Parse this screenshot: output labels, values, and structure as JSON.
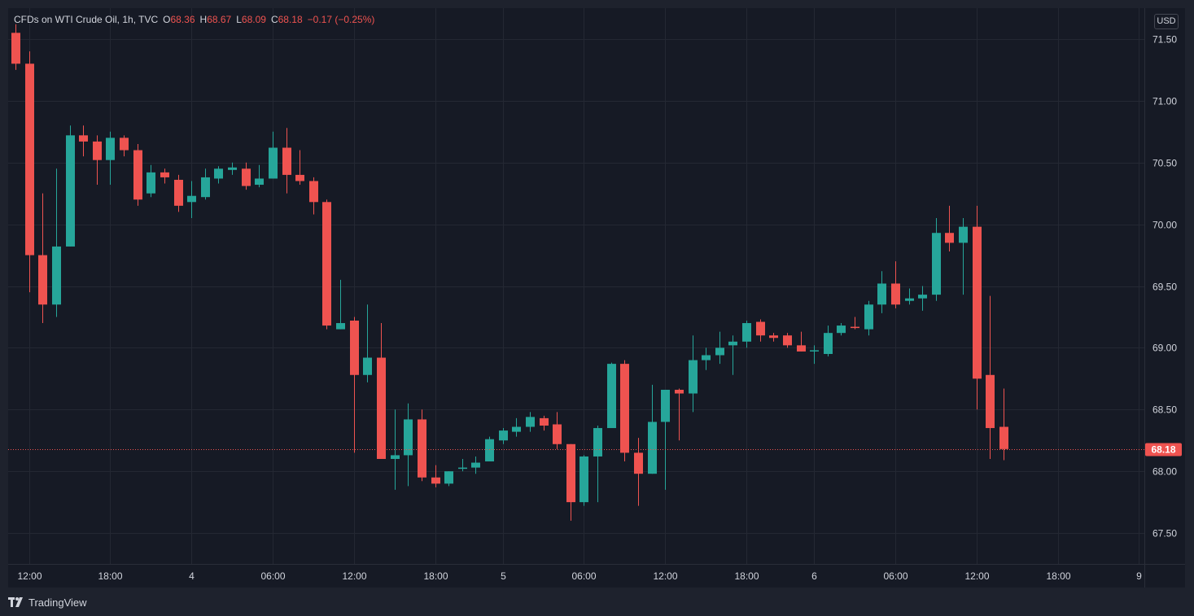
{
  "legend": {
    "symbol": "CFDs on WTI Crude Oil, 1h, TVC",
    "open_label": "O",
    "open": "68.36",
    "high_label": "H",
    "high": "68.67",
    "low_label": "L",
    "low": "68.09",
    "close_label": "C",
    "close": "68.18",
    "change": "−0.17 (−0.25%)"
  },
  "currency": "USD",
  "branding": {
    "logo_icon": "tradingview-logo-icon",
    "name": "TradingView"
  },
  "colors": {
    "up": "#26a69a",
    "down": "#ef5350",
    "grid": "#242833",
    "text": "#d1d4dc"
  },
  "chart_data": {
    "type": "candlestick",
    "interval": "1h",
    "ylim": [
      67.25,
      71.75
    ],
    "yticks": [
      "71.50",
      "71.00",
      "70.50",
      "70.00",
      "69.50",
      "69.00",
      "68.50",
      "68.00",
      "67.50"
    ],
    "xticks": [
      {
        "label": "12:00",
        "bar": 1
      },
      {
        "label": "18:00",
        "bar": 7
      },
      {
        "label": "4",
        "bar": 13
      },
      {
        "label": "06:00",
        "bar": 19
      },
      {
        "label": "12:00",
        "bar": 25
      },
      {
        "label": "18:00",
        "bar": 31
      },
      {
        "label": "5",
        "bar": 36
      },
      {
        "label": "06:00",
        "bar": 42
      },
      {
        "label": "12:00",
        "bar": 48
      },
      {
        "label": "18:00",
        "bar": 54
      },
      {
        "label": "6",
        "bar": 59
      },
      {
        "label": "06:00",
        "bar": 65
      },
      {
        "label": "12:00",
        "bar": 71
      },
      {
        "label": "18:00",
        "bar": 77
      },
      {
        "label": "9",
        "bar": 83
      }
    ],
    "last_price": "68.18",
    "candles": [
      [
        71.55,
        71.62,
        71.25,
        71.3
      ],
      [
        71.3,
        71.4,
        69.45,
        69.75
      ],
      [
        69.75,
        70.25,
        69.2,
        69.35
      ],
      [
        69.35,
        70.45,
        69.25,
        69.82
      ],
      [
        69.82,
        70.8,
        69.82,
        70.72
      ],
      [
        70.72,
        70.8,
        70.55,
        70.67
      ],
      [
        70.67,
        70.72,
        70.32,
        70.52
      ],
      [
        70.52,
        70.75,
        70.32,
        70.7
      ],
      [
        70.7,
        70.72,
        70.55,
        70.6
      ],
      [
        70.6,
        70.65,
        70.15,
        70.2
      ],
      [
        70.25,
        70.48,
        70.22,
        70.42
      ],
      [
        70.42,
        70.45,
        70.33,
        70.38
      ],
      [
        70.36,
        70.4,
        70.1,
        70.15
      ],
      [
        70.18,
        70.35,
        70.05,
        70.23
      ],
      [
        70.22,
        70.45,
        70.2,
        70.38
      ],
      [
        70.37,
        70.47,
        70.33,
        70.45
      ],
      [
        70.44,
        70.5,
        70.4,
        70.46
      ],
      [
        70.45,
        70.5,
        70.28,
        70.31
      ],
      [
        70.32,
        70.48,
        70.3,
        70.37
      ],
      [
        70.37,
        70.75,
        70.37,
        70.62
      ],
      [
        70.62,
        70.78,
        70.25,
        70.4
      ],
      [
        70.4,
        70.6,
        70.32,
        70.35
      ],
      [
        70.35,
        70.38,
        70.08,
        70.18
      ],
      [
        70.18,
        70.2,
        69.15,
        69.18
      ],
      [
        69.15,
        69.55,
        69.15,
        69.2
      ],
      [
        69.22,
        69.25,
        68.15,
        68.78
      ],
      [
        68.78,
        69.35,
        68.72,
        68.92
      ],
      [
        68.92,
        69.2,
        68.1,
        68.1
      ],
      [
        68.1,
        68.5,
        67.85,
        68.13
      ],
      [
        68.13,
        68.55,
        67.88,
        68.42
      ],
      [
        68.42,
        68.5,
        67.92,
        67.95
      ],
      [
        67.95,
        68.05,
        67.87,
        67.9
      ],
      [
        67.9,
        68.0,
        67.88,
        68.0
      ],
      [
        68.02,
        68.1,
        68.0,
        68.03
      ],
      [
        68.03,
        68.12,
        67.98,
        68.07
      ],
      [
        68.08,
        68.28,
        68.08,
        68.26
      ],
      [
        68.25,
        68.35,
        68.22,
        68.33
      ],
      [
        68.32,
        68.43,
        68.28,
        68.36
      ],
      [
        68.36,
        68.48,
        68.32,
        68.44
      ],
      [
        68.43,
        68.45,
        68.33,
        68.37
      ],
      [
        68.38,
        68.48,
        68.18,
        68.22
      ],
      [
        68.22,
        68.22,
        67.6,
        67.75
      ],
      [
        67.75,
        68.13,
        67.72,
        68.12
      ],
      [
        68.12,
        68.37,
        67.75,
        68.35
      ],
      [
        68.35,
        68.88,
        68.35,
        68.87
      ],
      [
        68.87,
        68.9,
        68.08,
        68.15
      ],
      [
        68.15,
        68.27,
        67.72,
        67.98
      ],
      [
        67.98,
        68.7,
        67.98,
        68.4
      ],
      [
        68.4,
        68.65,
        67.85,
        68.66
      ],
      [
        68.66,
        68.67,
        68.25,
        68.63
      ],
      [
        68.63,
        69.1,
        68.48,
        68.9
      ],
      [
        68.9,
        69.0,
        68.82,
        68.94
      ],
      [
        68.94,
        69.13,
        68.87,
        69.0
      ],
      [
        69.02,
        69.1,
        68.78,
        69.05
      ],
      [
        69.05,
        69.22,
        69.0,
        69.2
      ],
      [
        69.21,
        69.23,
        69.05,
        69.1
      ],
      [
        69.1,
        69.12,
        69.05,
        69.08
      ],
      [
        69.1,
        69.12,
        69.0,
        69.02
      ],
      [
        69.02,
        69.13,
        68.97,
        68.97
      ],
      [
        68.98,
        69.02,
        68.87,
        68.98
      ],
      [
        68.95,
        69.18,
        68.93,
        69.12
      ],
      [
        69.12,
        69.2,
        69.1,
        69.18
      ],
      [
        69.17,
        69.25,
        69.15,
        69.16
      ],
      [
        69.15,
        69.38,
        69.1,
        69.35
      ],
      [
        69.35,
        69.62,
        69.28,
        69.52
      ],
      [
        69.52,
        69.7,
        69.32,
        69.35
      ],
      [
        69.38,
        69.48,
        69.35,
        69.4
      ],
      [
        69.4,
        69.5,
        69.3,
        69.43
      ],
      [
        69.43,
        70.05,
        69.38,
        69.93
      ],
      [
        69.93,
        70.15,
        69.78,
        69.85
      ],
      [
        69.85,
        70.05,
        69.43,
        69.98
      ],
      [
        69.98,
        70.15,
        68.5,
        68.75
      ],
      [
        68.78,
        69.42,
        68.1,
        68.35
      ],
      [
        68.36,
        68.67,
        68.09,
        68.18
      ]
    ]
  }
}
